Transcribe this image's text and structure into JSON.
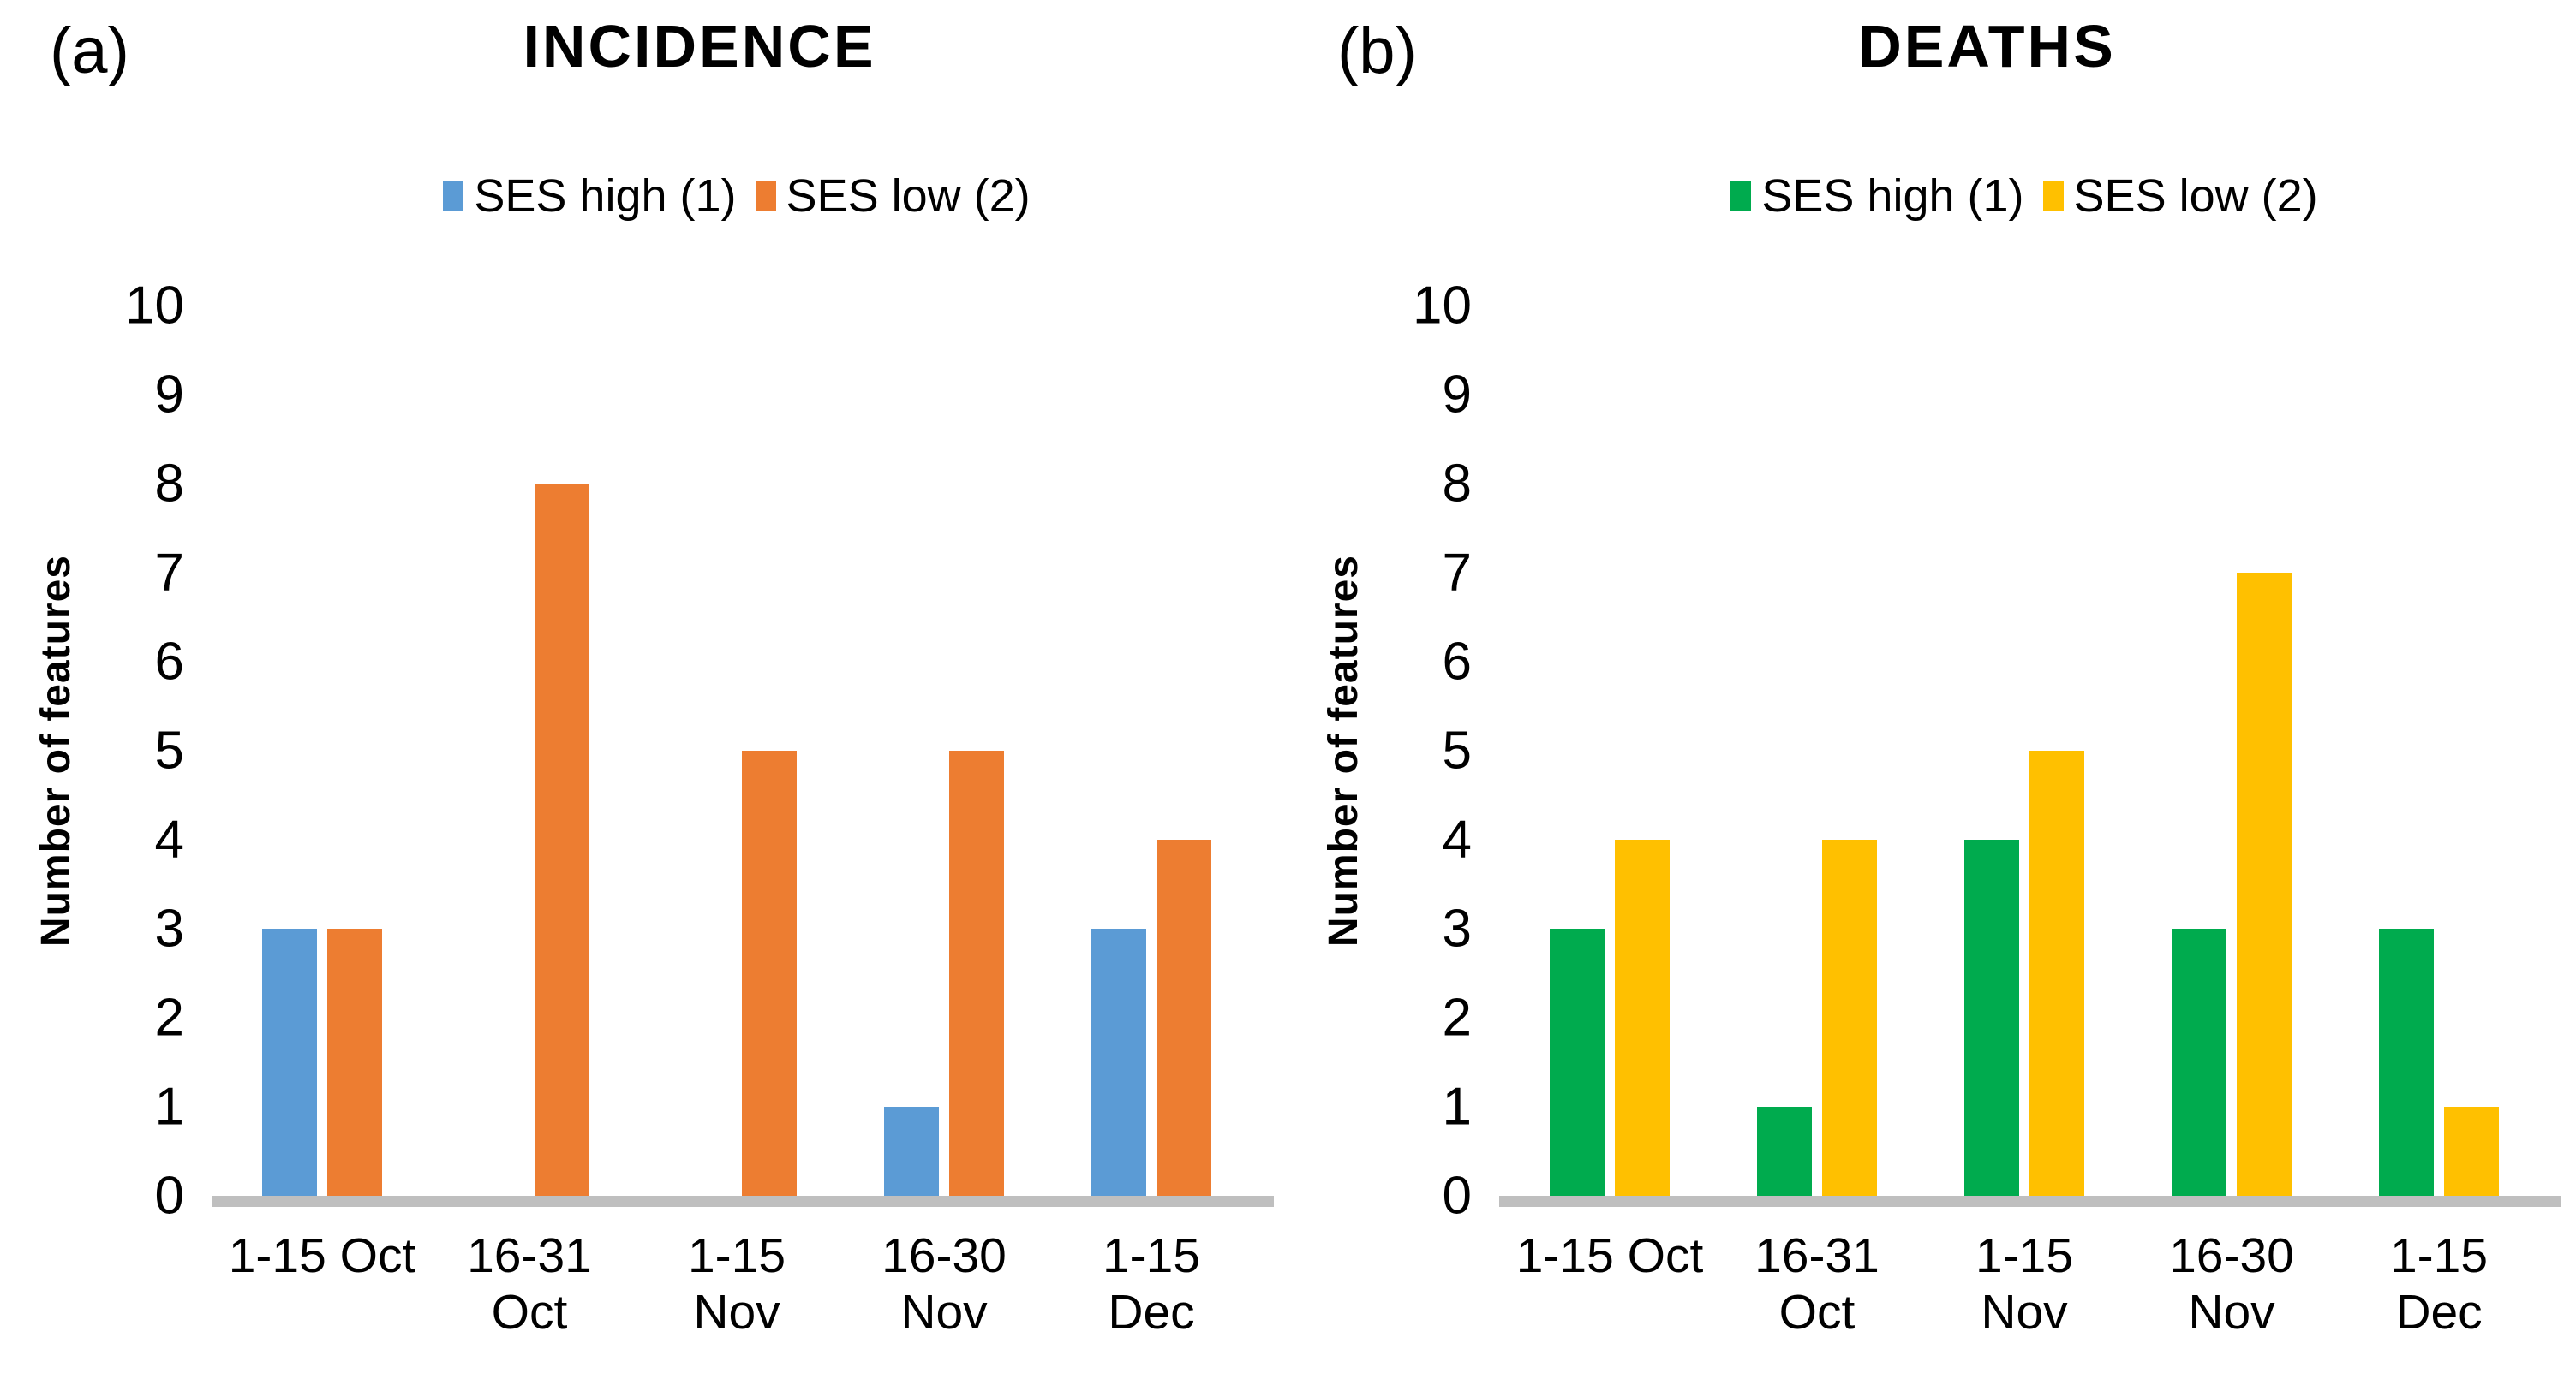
{
  "figure": {
    "background": "#FFFFFF",
    "text_color": "#000000",
    "axis_line_color": "#BFBFBF"
  },
  "chart_data": [
    {
      "type": "bar",
      "panel_label": "(a)",
      "title": "INCIDENCE",
      "ylabel": "Number of features",
      "ylim": [
        0,
        10
      ],
      "yticks": [
        10,
        9,
        8,
        7,
        6,
        5,
        4,
        3,
        2,
        1,
        0
      ],
      "grid": false,
      "legend_position": "top-center",
      "categories": [
        "1-15 Oct",
        "16-31 Oct",
        "1-15 Nov",
        "16-30 Nov",
        "1-15 Dec"
      ],
      "category_lines": [
        [
          "1-15 Oct"
        ],
        [
          "16-31",
          "Oct"
        ],
        [
          "1-15",
          "Nov"
        ],
        [
          "16-30",
          "Nov"
        ],
        [
          "1-15",
          "Dec"
        ]
      ],
      "series": [
        {
          "name": "SES high (1)",
          "color": "#5B9BD5",
          "values": [
            3,
            0,
            0,
            1,
            3
          ]
        },
        {
          "name": "SES low (2)",
          "color": "#ED7D31",
          "values": [
            3,
            8,
            5,
            5,
            4
          ]
        }
      ]
    },
    {
      "type": "bar",
      "panel_label": "(b)",
      "title": "DEATHS",
      "ylabel": "Number of features",
      "ylim": [
        0,
        10
      ],
      "yticks": [
        10,
        9,
        8,
        7,
        6,
        5,
        4,
        3,
        2,
        1,
        0
      ],
      "grid": false,
      "legend_position": "top-center",
      "categories": [
        "1-15 Oct",
        "16-31 Oct",
        "1-15 Nov",
        "16-30 Nov",
        "1-15 Dec"
      ],
      "category_lines": [
        [
          "1-15 Oct"
        ],
        [
          "16-31",
          "Oct"
        ],
        [
          "1-15",
          "Nov"
        ],
        [
          "16-30",
          "Nov"
        ],
        [
          "1-15",
          "Dec"
        ]
      ],
      "series": [
        {
          "name": "SES high (1)",
          "color": "#00AB4E",
          "values": [
            3,
            1,
            4,
            3,
            3
          ]
        },
        {
          "name": "SES low (2)",
          "color": "#FFC000",
          "values": [
            4,
            4,
            5,
            7,
            1
          ]
        }
      ]
    }
  ]
}
